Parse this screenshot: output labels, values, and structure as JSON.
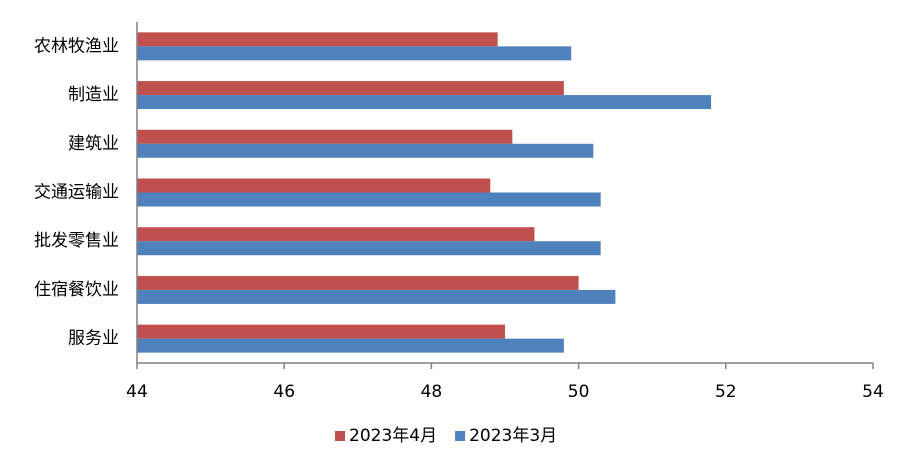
{
  "chart_data": {
    "type": "hbar",
    "categories": [
      "农林牧渔业",
      "制造业",
      "建筑业",
      "交通运输业",
      "批发零售业",
      "住宿餐饮业",
      "服务业"
    ],
    "series": [
      {
        "name": "2023年4月",
        "color": "#c0504d",
        "values": [
          48.9,
          49.8,
          49.1,
          48.8,
          49.4,
          50.0,
          49.0
        ]
      },
      {
        "name": "2023年3月",
        "color": "#4f81bd",
        "values": [
          49.9,
          51.8,
          50.2,
          50.3,
          50.3,
          50.5,
          49.8
        ]
      }
    ],
    "xlim": [
      44,
      54
    ],
    "xticks": [
      44,
      46,
      48,
      50,
      52,
      54
    ],
    "legend": "bottom"
  }
}
